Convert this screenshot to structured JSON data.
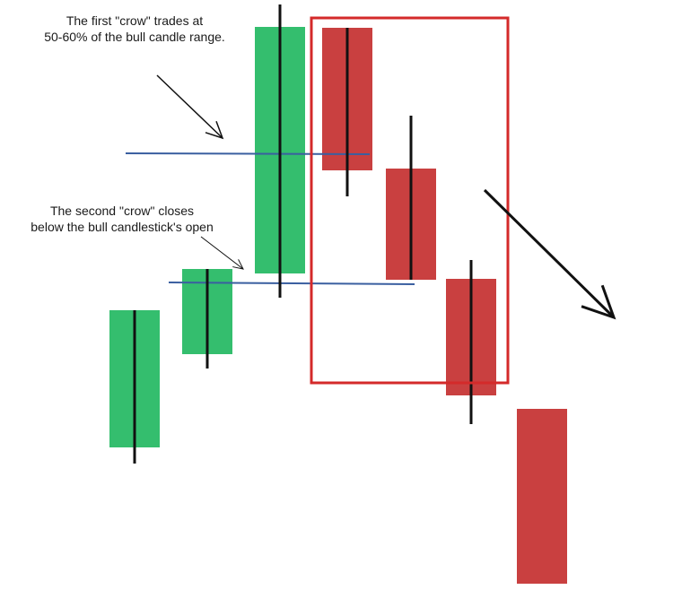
{
  "annotations": {
    "first_crow": {
      "line1": "The first \"crow\" trades at",
      "line2": "50-60% of the bull candle range."
    },
    "second_crow": {
      "line1": "The second \"crow\" closes",
      "line2": "below the bull candlestick's open"
    }
  },
  "colors": {
    "bull": "#34be6e",
    "bear": "#c94040",
    "wick": "#111111",
    "level_line": "#3a5fa0",
    "highlight_box": "#d42a2a",
    "arrow": "#111111"
  },
  "chart_data": {
    "type": "candlestick",
    "pattern": "three black crows",
    "title": "",
    "candles": [
      {
        "name": "bull-candle-1",
        "direction": "bull",
        "open": 178,
        "close": 331,
        "high": 331,
        "low": 160
      },
      {
        "name": "bull-candle-2",
        "direction": "bull",
        "open": 282,
        "close": 377,
        "high": 377,
        "low": 266
      },
      {
        "name": "bull-candle-3",
        "direction": "bull",
        "open": 372,
        "close": 647,
        "high": 672,
        "low": 345
      },
      {
        "name": "crow-1",
        "direction": "bear",
        "open": 646,
        "close": 487,
        "high": 646,
        "low": 458
      },
      {
        "name": "crow-2",
        "direction": "bear",
        "open": 489,
        "close": 365,
        "high": 548,
        "low": 365
      },
      {
        "name": "crow-3",
        "direction": "bear",
        "open": 366,
        "close": 236,
        "high": 387,
        "low": 204
      },
      {
        "name": "bear-candle-5",
        "direction": "bear",
        "open": 221,
        "close": 26,
        "high": 221,
        "low": 26
      }
    ],
    "levels": [
      {
        "name": "mid-range-level",
        "value": 506
      },
      {
        "name": "bull-open-level",
        "value": 362
      }
    ],
    "highlight_candles": [
      "crow-1",
      "crow-2",
      "crow-3"
    ]
  }
}
